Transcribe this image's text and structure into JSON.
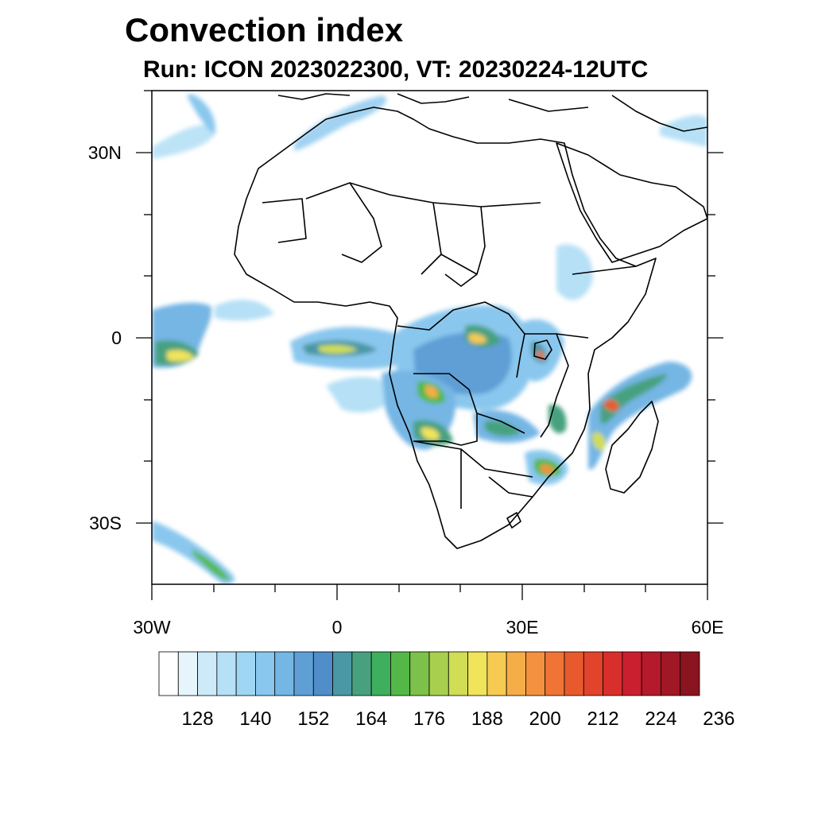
{
  "title": "Convection index",
  "subtitle": "Run: ICON 2023022300,  VT: 20230224-12UTC",
  "map": {
    "lon_range": [
      -30,
      60
    ],
    "lat_range": [
      -40,
      40
    ],
    "lon_ticks": [
      {
        "value": -30,
        "label": "30W"
      },
      {
        "value": 0,
        "label": "0"
      },
      {
        "value": 30,
        "label": "30E"
      },
      {
        "value": 60,
        "label": "60E"
      }
    ],
    "lat_ticks": [
      {
        "value": 30,
        "label": "30N"
      },
      {
        "value": 0,
        "label": "0"
      },
      {
        "value": -30,
        "label": "30S"
      }
    ]
  },
  "colorbar": {
    "colors": [
      "#ffffff",
      "#e6f4fc",
      "#cdeaf8",
      "#b6e0f6",
      "#9fd6f4",
      "#8ac7ee",
      "#74b6e4",
      "#5e9fd6",
      "#4f8ec8",
      "#4a97a5",
      "#47a17f",
      "#3fae5d",
      "#53b848",
      "#7cc24a",
      "#a8cf4e",
      "#d0dd55",
      "#f0e45a",
      "#f7cb52",
      "#f5ad48",
      "#f39140",
      "#ef7436",
      "#e85a2e",
      "#e2432b",
      "#d82f2d",
      "#c91f2f",
      "#b5192c",
      "#a01725",
      "#8a1420"
    ],
    "labels": [
      "128",
      "140",
      "152",
      "164",
      "176",
      "188",
      "200",
      "212",
      "224",
      "236"
    ]
  }
}
